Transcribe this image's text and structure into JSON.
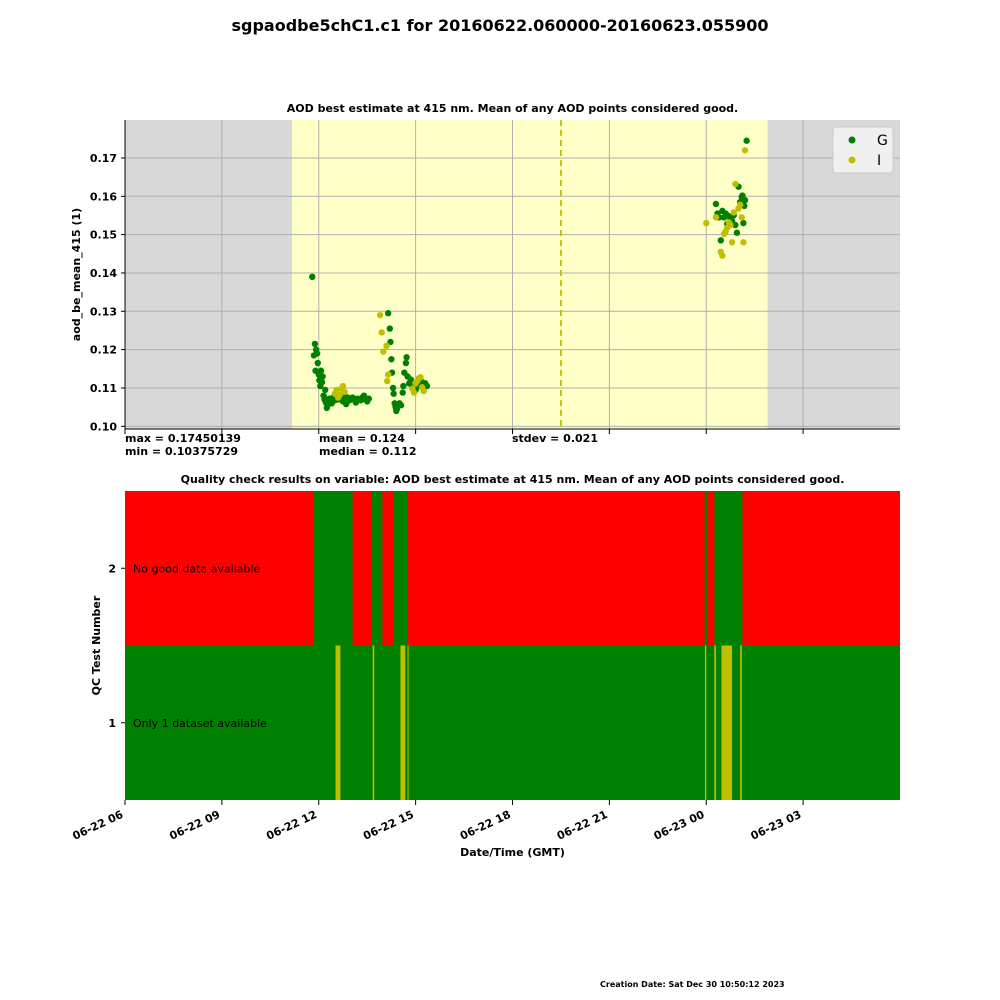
{
  "suptitle": "sgpaodbe5chC1.c1 for 20160622.060000-20160623.055900",
  "creation_date": "Creation Date: Sat Dec 30 10:50:12 2023",
  "stats": {
    "max": "max = 0.17450139",
    "min": "min = 0.10375729",
    "mean": "mean = 0.124",
    "median": "median = 0.112",
    "stdev": "stdev = 0.021"
  },
  "colors": {
    "good": "#008000",
    "indeterminate": "#bfbf00",
    "bad": "#ff0000",
    "shade_night": "#d8d8d8",
    "shade_day": "#ffffc8",
    "grid": "#b0b0b0"
  },
  "chart_data": [
    {
      "type": "scatter",
      "title": "AOD best estimate at 415 nm. Mean of any AOD points considered good.",
      "ylabel": "aod_be_mean_415 (1)",
      "xlabel": "",
      "xlim": [
        6,
        30
      ],
      "ylim": [
        0.0993,
        0.1799
      ],
      "yticks": [
        0.1,
        0.11,
        0.12,
        0.13,
        0.14,
        0.15,
        0.16,
        0.17
      ],
      "ytick_labels": [
        "0.10",
        "0.11",
        "0.12",
        "0.13",
        "0.14",
        "0.15",
        "0.16",
        "0.17"
      ],
      "grid": true,
      "legend": {
        "position": "top-right"
      },
      "daylight_shading": {
        "day_start": 11.17,
        "day_end": 25.9
      },
      "mean_line": {
        "x": 19.5,
        "style": "dashed"
      },
      "series": [
        {
          "name": "G",
          "color": "#008000",
          "x": [
            11.8,
            11.85,
            11.88,
            11.9,
            11.92,
            11.95,
            11.97,
            12.0,
            12.02,
            12.05,
            12.07,
            12.1,
            12.12,
            12.15,
            12.18,
            12.2,
            12.22,
            12.25,
            12.28,
            12.3,
            12.33,
            12.35,
            12.4,
            12.45,
            12.5,
            12.55,
            12.6,
            12.65,
            12.7,
            12.75,
            12.8,
            12.85,
            12.9,
            12.95,
            13.0,
            13.05,
            13.1,
            13.15,
            13.2,
            13.3,
            13.35,
            13.4,
            13.45,
            13.5,
            13.55,
            14.15,
            14.2,
            14.22,
            14.25,
            14.27,
            14.3,
            14.32,
            14.35,
            14.38,
            14.4,
            14.42,
            14.45,
            14.5,
            14.55,
            14.6,
            14.62,
            14.65,
            14.7,
            14.72,
            14.75,
            14.8,
            14.85,
            14.9,
            15.0,
            15.05,
            15.1,
            15.15,
            15.2,
            15.25,
            15.3,
            15.35,
            24.3,
            24.35,
            24.4,
            24.45,
            24.5,
            24.55,
            24.6,
            24.65,
            24.7,
            24.75,
            24.8,
            24.85,
            24.9,
            24.95,
            25.0,
            25.05,
            25.1,
            25.12,
            25.15,
            25.18,
            25.2,
            25.25
          ],
          "y": [
            0.139,
            0.1185,
            0.1215,
            0.1145,
            0.12,
            0.119,
            0.1165,
            0.1135,
            0.112,
            0.1105,
            0.1145,
            0.1115,
            0.113,
            0.108,
            0.107,
            0.1095,
            0.1062,
            0.1048,
            0.107,
            0.1058,
            0.1072,
            0.1065,
            0.106,
            0.1075,
            0.1068,
            0.108,
            0.107,
            0.108,
            0.1072,
            0.1065,
            0.108,
            0.1058,
            0.1075,
            0.1068,
            0.107,
            0.1075,
            0.107,
            0.1062,
            0.1072,
            0.1068,
            0.1075,
            0.108,
            0.107,
            0.1065,
            0.1072,
            0.1295,
            0.1255,
            0.122,
            0.1175,
            0.114,
            0.11,
            0.1085,
            0.106,
            0.105,
            0.104,
            0.1045,
            0.1055,
            0.106,
            0.1055,
            0.1088,
            0.1105,
            0.114,
            0.1165,
            0.118,
            0.113,
            0.1112,
            0.1122,
            0.1105,
            0.1095,
            0.1112,
            0.1105,
            0.112,
            0.1115,
            0.1108,
            0.1112,
            0.1105,
            0.158,
            0.1555,
            0.1545,
            0.1485,
            0.1562,
            0.1545,
            0.1555,
            0.1528,
            0.1548,
            0.1545,
            0.1535,
            0.155,
            0.1525,
            0.1505,
            0.1625,
            0.1585,
            0.1598,
            0.1602,
            0.153,
            0.1575,
            0.159,
            0.1745
          ]
        },
        {
          "name": "I",
          "color": "#bfbf00",
          "x": [
            12.5,
            12.55,
            12.6,
            12.65,
            12.7,
            12.75,
            12.8,
            13.9,
            13.95,
            14.0,
            14.1,
            14.12,
            14.15,
            14.9,
            14.95,
            15.0,
            15.05,
            15.1,
            15.15,
            15.2,
            15.25,
            24.0,
            24.3,
            24.45,
            24.5,
            24.55,
            24.6,
            24.65,
            24.7,
            24.75,
            24.8,
            24.85,
            24.9,
            25.0,
            25.05,
            25.1,
            25.15,
            25.2
          ],
          "y": [
            0.1085,
            0.1095,
            0.1075,
            0.1082,
            0.1098,
            0.1105,
            0.109,
            0.129,
            0.1245,
            0.1195,
            0.121,
            0.1118,
            0.1135,
            0.1098,
            0.1088,
            0.1112,
            0.1118,
            0.1125,
            0.1128,
            0.1102,
            0.1092,
            0.153,
            0.1545,
            0.1455,
            0.1445,
            0.1502,
            0.1508,
            0.1518,
            0.1532,
            0.1525,
            0.148,
            0.1558,
            0.1632,
            0.1568,
            0.1578,
            0.1545,
            0.148,
            0.172
          ]
        }
      ]
    },
    {
      "type": "heatmap",
      "title": "Quality check results on variable: AOD best estimate at 415 nm. Mean of any AOD points considered good.",
      "ylabel": "QC Test Number",
      "xlabel": "Date/Time (GMT)",
      "xlim": [
        6,
        30
      ],
      "xticks": [
        6,
        9,
        12,
        15,
        18,
        21,
        24,
        27
      ],
      "xtick_labels": [
        "06-22 06",
        "06-22 09",
        "06-22 12",
        "06-22 15",
        "06-22 18",
        "06-22 21",
        "06-23 00",
        "06-23 03"
      ],
      "yticks": [
        1,
        2
      ],
      "tests": [
        {
          "number": 2,
          "label": "No good data available",
          "base_state": "bad",
          "segments": [
            {
              "start": 11.83,
              "end": 13.05,
              "state": "good"
            },
            {
              "start": 13.64,
              "end": 13.97,
              "state": "good"
            },
            {
              "start": 14.3,
              "end": 14.75,
              "state": "good"
            },
            {
              "start": 23.95,
              "end": 24.02,
              "state": "good"
            },
            {
              "start": 24.25,
              "end": 25.12,
              "state": "good"
            }
          ]
        },
        {
          "number": 1,
          "label": "Only 1 dataset available",
          "base_state": "good",
          "segments": [
            {
              "start": 12.52,
              "end": 12.67,
              "state": "indeterminate"
            },
            {
              "start": 13.67,
              "end": 13.72,
              "state": "indeterminate"
            },
            {
              "start": 14.53,
              "end": 14.68,
              "state": "indeterminate"
            },
            {
              "start": 14.75,
              "end": 14.78,
              "state": "indeterminate"
            },
            {
              "start": 23.96,
              "end": 24.0,
              "state": "indeterminate"
            },
            {
              "start": 24.25,
              "end": 24.3,
              "state": "indeterminate"
            },
            {
              "start": 24.47,
              "end": 24.8,
              "state": "indeterminate"
            },
            {
              "start": 25.05,
              "end": 25.1,
              "state": "indeterminate"
            }
          ]
        }
      ]
    }
  ]
}
